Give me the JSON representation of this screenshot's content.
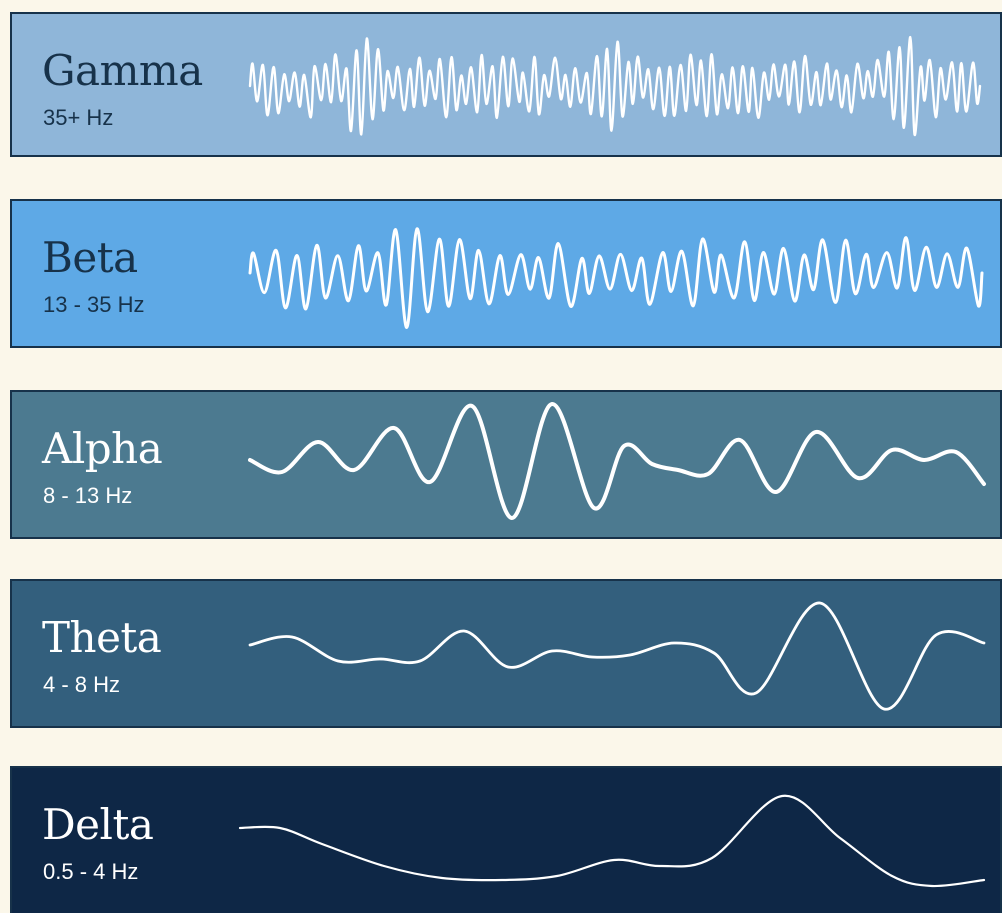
{
  "bands": [
    {
      "name": "Gamma",
      "range": "35+ Hz",
      "background": "#8fb6d9",
      "text_color": "#17324a",
      "wave_color": "#ffffff"
    },
    {
      "name": "Beta",
      "range": "13 - 35 Hz",
      "background": "#5ea9e6",
      "text_color": "#17324a",
      "wave_color": "#ffffff"
    },
    {
      "name": "Alpha",
      "range": "8 - 13 Hz",
      "background": "#4c7a90",
      "text_color": "#ffffff",
      "wave_color": "#ffffff"
    },
    {
      "name": "Theta",
      "range": "4 - 8 Hz",
      "background": "#335f7d",
      "text_color": "#ffffff",
      "wave_color": "#ffffff"
    },
    {
      "name": "Delta",
      "range": "0.5 - 4 Hz",
      "background": "#0e2746",
      "text_color": "#ffffff",
      "wave_color": "#ffffff"
    }
  ]
}
